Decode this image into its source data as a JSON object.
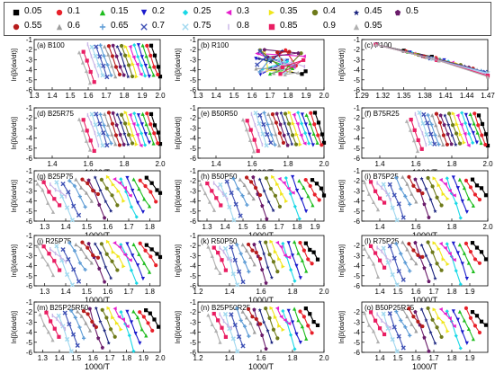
{
  "legend": [
    {
      "label": "0.05",
      "color": "#000000",
      "marker": "square"
    },
    {
      "label": "0.1",
      "color": "#e8202a",
      "marker": "circle"
    },
    {
      "label": "0.15",
      "color": "#1fbd1f",
      "marker": "triangle-up"
    },
    {
      "label": "0.2",
      "color": "#1a1acc",
      "marker": "triangle-down"
    },
    {
      "label": "0.25",
      "color": "#19d8e6",
      "marker": "diamond"
    },
    {
      "label": "0.3",
      "color": "#e61ecc",
      "marker": "triangle-left"
    },
    {
      "label": "0.35",
      "color": "#f0e61a",
      "marker": "triangle-right"
    },
    {
      "label": "0.4",
      "color": "#6e7a1a",
      "marker": "hexagon"
    },
    {
      "label": "0.45",
      "color": "#1a237e",
      "marker": "star"
    },
    {
      "label": "0.5",
      "color": "#6a1b6a",
      "marker": "pentagon"
    },
    {
      "label": "0.55",
      "color": "#b71c1c",
      "marker": "circle"
    },
    {
      "label": "0.6",
      "color": "#9e9e9e",
      "marker": "triangle-up"
    },
    {
      "label": "0.65",
      "color": "#5c9bd5",
      "marker": "cross"
    },
    {
      "label": "0.7",
      "color": "#3f51b5",
      "marker": "x"
    },
    {
      "label": "0.75",
      "color": "#a0d8ef",
      "marker": "x"
    },
    {
      "label": "0.8",
      "color": "#c8b4e6",
      "marker": "bar"
    },
    {
      "label": "0.85",
      "color": "#e91e63",
      "marker": "square"
    },
    {
      "label": "0.9",
      "color": "#ffffff",
      "marker": "none"
    },
    {
      "label": "0.95",
      "color": "#b0b0b0",
      "marker": "triangle-up"
    }
  ],
  "chart_data": [
    {
      "type": "scatter",
      "panel": "(a) B100",
      "xlabel": "",
      "ylabel": "ln[β(dα/dt)]",
      "xlim": [
        1.3,
        2.0
      ],
      "ylim": [
        -6,
        -1
      ],
      "xticks": [
        "1.3",
        "1.4",
        "1.5",
        "1.6",
        "1.7",
        "1.8",
        "1.9",
        "2.0"
      ],
      "yticks": [
        "-1",
        "-2",
        "-3",
        "-4",
        "-5",
        "-6"
      ],
      "x_range": [
        1.58,
        1.98
      ],
      "mode": "parallel"
    },
    {
      "type": "scatter",
      "panel": "(b) R100",
      "xlabel": "",
      "ylabel": "ln[β(dα/dt)]",
      "xlim": [
        1.3,
        2.0
      ],
      "ylim": [
        -6,
        -1
      ],
      "xticks": [
        "1.3",
        "1.4",
        "1.5",
        "1.6",
        "1.7",
        "1.8",
        "1.9",
        "2.0"
      ],
      "yticks": [
        "-1",
        "-2",
        "-3",
        "-4",
        "-5",
        "-6"
      ],
      "x_range": [
        1.62,
        1.92
      ],
      "mode": "scatter"
    },
    {
      "type": "scatter",
      "panel": "(c) P100",
      "xlabel": "",
      "ylabel": "ln[β(dα/dt)]",
      "xlim": [
        1.29,
        1.47
      ],
      "ylim": [
        -6,
        -1
      ],
      "xticks": [
        "1.29",
        "1.32",
        "1.35",
        "1.38",
        "1.41",
        "1.44",
        "1.47"
      ],
      "yticks": [
        "-1",
        "-2",
        "-3",
        "-4",
        "-5",
        "-6"
      ],
      "x_range": [
        1.3,
        1.47
      ],
      "mode": "fan"
    },
    {
      "type": "scatter",
      "panel": "(d) B25R75",
      "xlabel": "1000/T",
      "ylabel": "ln[β(dα/dt)]",
      "xlim": [
        1.3,
        2.0
      ],
      "ylim": [
        -6,
        -1
      ],
      "xticks": [
        "1.4",
        "1.6",
        "1.8",
        "2.0"
      ],
      "yticks": [
        "-1",
        "-2",
        "-3",
        "-4",
        "-5",
        "-6"
      ],
      "x_range": [
        1.58,
        1.98
      ],
      "mode": "parallel"
    },
    {
      "type": "scatter",
      "panel": "(e) B50R50",
      "xlabel": "1000/T",
      "ylabel": "ln[β(dα/dt)]",
      "xlim": [
        1.3,
        2.0
      ],
      "ylim": [
        -6,
        -1
      ],
      "xticks": [
        "1.4",
        "1.6",
        "1.8",
        "2.0"
      ],
      "yticks": [
        "-1",
        "-2",
        "-3",
        "-4",
        "-5",
        "-6"
      ],
      "x_range": [
        1.58,
        1.98
      ],
      "mode": "parallel"
    },
    {
      "type": "scatter",
      "panel": "(f) B75R25",
      "xlabel": "1000/T",
      "ylabel": "ln[β(dα/dt)]",
      "xlim": [
        1.3,
        2.0
      ],
      "ylim": [
        -6,
        -1
      ],
      "xticks": [
        "1.4",
        "1.6",
        "1.8",
        "2.0"
      ],
      "yticks": [
        "-1",
        "-2",
        "-3",
        "-4",
        "-5",
        "-6"
      ],
      "x_range": [
        1.58,
        1.98
      ],
      "mode": "parallel"
    },
    {
      "type": "scatter",
      "panel": "(g) B25P75",
      "xlabel": "1000/T",
      "ylabel": "ln[β(dα/dt)]",
      "xlim": [
        1.25,
        1.85
      ],
      "ylim": [
        -6,
        -1
      ],
      "xticks": [
        "1.3",
        "1.4",
        "1.5",
        "1.6",
        "1.7",
        "1.8"
      ],
      "yticks": [
        "-1",
        "-2",
        "-3",
        "-4",
        "-5",
        "-6"
      ],
      "x_range": [
        1.3,
        1.82
      ],
      "mode": "mixed"
    },
    {
      "type": "scatter",
      "panel": "(h) B50P50",
      "xlabel": "1000/T",
      "ylabel": "ln[β(dα/dt)]",
      "xlim": [
        1.25,
        1.95
      ],
      "ylim": [
        -6,
        -1
      ],
      "xticks": [
        "1.3",
        "1.4",
        "1.5",
        "1.6",
        "1.7",
        "1.8",
        "1.9"
      ],
      "yticks": [
        "-1",
        "-2",
        "-3",
        "-4",
        "-5",
        "-6"
      ],
      "x_range": [
        1.3,
        1.92
      ],
      "mode": "mixed"
    },
    {
      "type": "scatter",
      "panel": "(i) B75P25",
      "xlabel": "1000/T",
      "ylabel": "ln[β(dα/dt)]",
      "xlim": [
        1.3,
        2.0
      ],
      "ylim": [
        -6,
        -1
      ],
      "xticks": [
        "1.4",
        "1.6",
        "1.8",
        "2.0"
      ],
      "yticks": [
        "-1",
        "-2",
        "-3",
        "-4",
        "-5",
        "-6"
      ],
      "x_range": [
        1.35,
        1.95
      ],
      "mode": "mixed"
    },
    {
      "type": "scatter",
      "panel": "(j) R25P75",
      "xlabel": "1000/T",
      "ylabel": "ln[β(dα/dt)]",
      "xlim": [
        1.25,
        1.85
      ],
      "ylim": [
        -6,
        -1
      ],
      "xticks": [
        "1.3",
        "1.4",
        "1.5",
        "1.6",
        "1.7",
        "1.8"
      ],
      "yticks": [
        "-1",
        "-2",
        "-3",
        "-4",
        "-5",
        "-6"
      ],
      "x_range": [
        1.3,
        1.82
      ],
      "mode": "mixed"
    },
    {
      "type": "scatter",
      "panel": "(k) R50P50",
      "xlabel": "1000/T",
      "ylabel": "ln[β(dα/dt)]",
      "xlim": [
        1.2,
        2.0
      ],
      "ylim": [
        -6,
        -1
      ],
      "xticks": [
        "1.2",
        "1.4",
        "1.6",
        "1.8",
        "2.0"
      ],
      "yticks": [
        "-1",
        "-2",
        "-3",
        "-4",
        "-5",
        "-6"
      ],
      "x_range": [
        1.3,
        1.92
      ],
      "mode": "mixed"
    },
    {
      "type": "scatter",
      "panel": "(l) R75P25",
      "xlabel": "1000/T",
      "ylabel": "ln[β(dα/dt)]",
      "xlim": [
        1.3,
        2.0
      ],
      "ylim": [
        -6,
        -1
      ],
      "xticks": [
        "1.4",
        "1.5",
        "1.6",
        "1.7",
        "1.8",
        "1.9"
      ],
      "yticks": [
        "-2",
        "-3",
        "-4",
        "-5",
        "-6"
      ],
      "x_range": [
        1.35,
        1.95
      ],
      "mode": "mixed"
    },
    {
      "type": "scatter",
      "panel": "(m) B25P25R50",
      "xlabel": "1000/T",
      "ylabel": "ln[β(dα/dt)]",
      "xlim": [
        1.25,
        2.0
      ],
      "ylim": [
        -6,
        -1
      ],
      "xticks": [
        "1.3",
        "1.4",
        "1.5",
        "1.6",
        "1.7",
        "1.8",
        "1.9",
        "2.0"
      ],
      "yticks": [
        "-1",
        "-2",
        "-3",
        "-4",
        "-5",
        "-6"
      ],
      "x_range": [
        1.32,
        1.95
      ],
      "mode": "mixed"
    },
    {
      "type": "scatter",
      "panel": "(n) B25P50R25",
      "xlabel": "1000/T",
      "ylabel": "ln[β(dα/dt)]",
      "xlim": [
        1.2,
        2.0
      ],
      "ylim": [
        -6,
        -1
      ],
      "xticks": [
        "1.2",
        "1.4",
        "1.6",
        "1.8",
        "2.0"
      ],
      "yticks": [
        "-1",
        "-2",
        "-3",
        "-4",
        "-5",
        "-6"
      ],
      "x_range": [
        1.3,
        1.92
      ],
      "mode": "mixed"
    },
    {
      "type": "scatter",
      "panel": "(o) B50P25R25",
      "xlabel": "1000/T",
      "ylabel": "ln[β(dα/dt)]",
      "xlim": [
        1.3,
        2.0
      ],
      "ylim": [
        -6,
        -1
      ],
      "xticks": [
        "1.4",
        "1.5",
        "1.6",
        "1.7",
        "1.8",
        "1.9"
      ],
      "yticks": [
        "-2",
        "-3",
        "-4",
        "-5",
        "-6"
      ],
      "x_range": [
        1.35,
        1.95
      ],
      "mode": "mixed"
    }
  ]
}
